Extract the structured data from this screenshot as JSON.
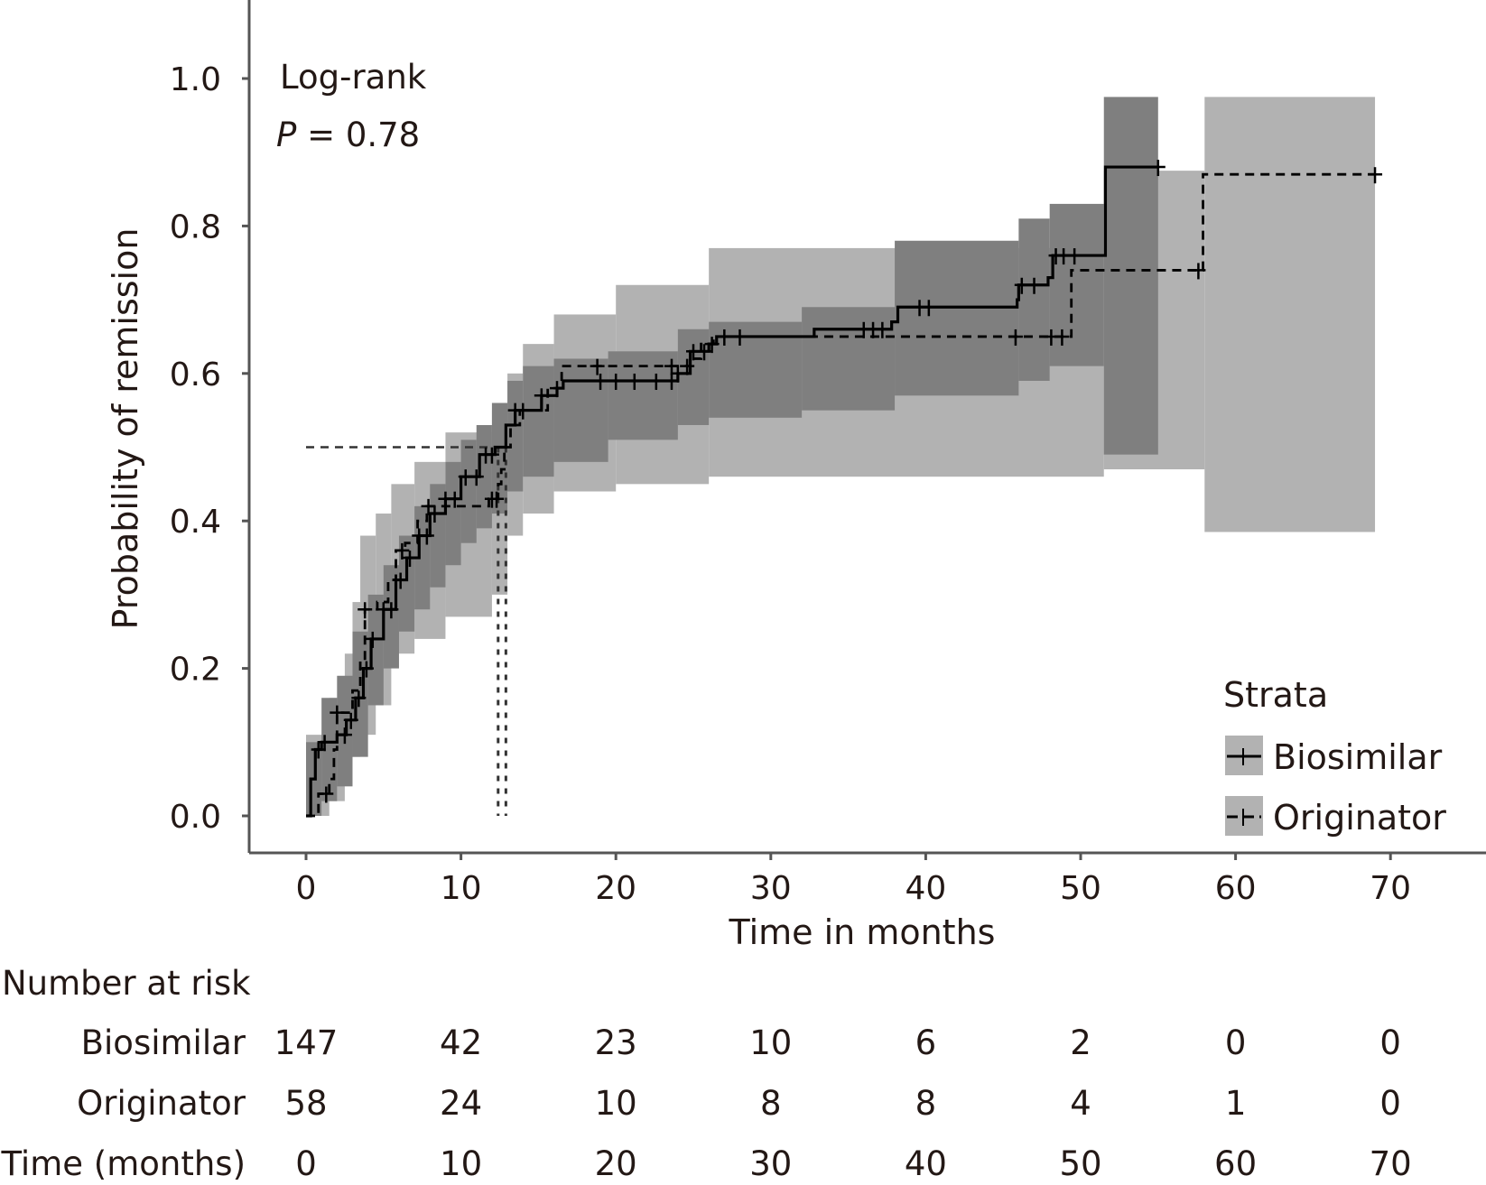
{
  "chart_data": {
    "type": "line",
    "subtype": "kaplan-meier-cumulative-incidence",
    "title": "",
    "xlabel": "Time in months",
    "ylabel": "Probability of remission",
    "xlim": [
      -3,
      72
    ],
    "ylim": [
      -0.045,
      1.03
    ],
    "x_ticks": [
      0,
      10,
      20,
      30,
      40,
      50,
      60,
      70
    ],
    "x_tick_labels": [
      "0",
      "10",
      "20",
      "30",
      "40",
      "50",
      "60",
      "70"
    ],
    "y_ticks": [
      0.0,
      0.2,
      0.4,
      0.6,
      0.8,
      1.0
    ],
    "y_tick_labels": [
      "0.0",
      "0.2",
      "0.4",
      "0.6",
      "0.8",
      "1.0"
    ],
    "grid": false,
    "annotation": {
      "line1": "Log-rank",
      "p_symbol": "P",
      "p_text": " = 0.78",
      "p_value": 0.78,
      "placement": "top-left"
    },
    "legend": {
      "title": "Strata",
      "placement": "bottom-right",
      "entries": [
        {
          "label": "Biosimilar",
          "linestyle": "solid"
        },
        {
          "label": "Originator",
          "linestyle": "dashed"
        }
      ]
    },
    "median_reference": {
      "y": 0.5,
      "x_biosimilar": 12.9,
      "x_originator": 12.4
    },
    "series": [
      {
        "name": "Biosimilar",
        "linestyle": "solid",
        "ci_fill": "#7f7f7f",
        "steps": [
          [
            0,
            0.0
          ],
          [
            0.3,
            0.05
          ],
          [
            0.6,
            0.09
          ],
          [
            1.0,
            0.1
          ],
          [
            2.0,
            0.11
          ],
          [
            2.6,
            0.13
          ],
          [
            3.2,
            0.16
          ],
          [
            3.7,
            0.2
          ],
          [
            4.2,
            0.24
          ],
          [
            5.0,
            0.28
          ],
          [
            5.8,
            0.32
          ],
          [
            6.5,
            0.35
          ],
          [
            7.3,
            0.38
          ],
          [
            8.0,
            0.41
          ],
          [
            9.0,
            0.43
          ],
          [
            10.0,
            0.46
          ],
          [
            11.2,
            0.49
          ],
          [
            12.2,
            0.5
          ],
          [
            12.9,
            0.53
          ],
          [
            13.5,
            0.55
          ],
          [
            15.2,
            0.57
          ],
          [
            16.2,
            0.58
          ],
          [
            16.6,
            0.59
          ],
          [
            24.0,
            0.6
          ],
          [
            24.8,
            0.63
          ],
          [
            26.0,
            0.64
          ],
          [
            26.5,
            0.65
          ],
          [
            32.8,
            0.66
          ],
          [
            37.8,
            0.67
          ],
          [
            38.2,
            0.69
          ],
          [
            45.9,
            0.7
          ],
          [
            46.0,
            0.72
          ],
          [
            47.9,
            0.73
          ],
          [
            48.2,
            0.76
          ],
          [
            51.6,
            0.77
          ],
          [
            51.6,
            0.88
          ],
          [
            55.0,
            0.88
          ]
        ],
        "censor_times": [
          0.8,
          1.2,
          2.5,
          2.9,
          3.4,
          3.9,
          4.3,
          5.0,
          5.5,
          6.1,
          6.7,
          7.3,
          7.8,
          8.3,
          9.0,
          9.6,
          10.3,
          11.0,
          11.6,
          12.0,
          13.5,
          14.0,
          15.2,
          16.2,
          19.0,
          20.0,
          21.2,
          22.6,
          23.6,
          24.0,
          25.0,
          25.7,
          27.0,
          28.0,
          36.0,
          36.6,
          37.2,
          39.6,
          40.2,
          46.2,
          47.0,
          48.4,
          48.9,
          49.6,
          55.0
        ]
      },
      {
        "name": "Originator",
        "linestyle": "dashed",
        "ci_fill": "#b2b2b2",
        "steps": [
          [
            0,
            0.0
          ],
          [
            0.8,
            0.03
          ],
          [
            1.5,
            0.05
          ],
          [
            1.8,
            0.09
          ],
          [
            2.0,
            0.14
          ],
          [
            3.0,
            0.17
          ],
          [
            3.5,
            0.21
          ],
          [
            3.8,
            0.28
          ],
          [
            4.6,
            0.29
          ],
          [
            5.3,
            0.32
          ],
          [
            5.8,
            0.36
          ],
          [
            6.4,
            0.37
          ],
          [
            7.2,
            0.4
          ],
          [
            7.8,
            0.42
          ],
          [
            11.8,
            0.43
          ],
          [
            12.4,
            0.45
          ],
          [
            12.6,
            0.47
          ],
          [
            12.8,
            0.5
          ],
          [
            13.2,
            0.53
          ],
          [
            13.8,
            0.55
          ],
          [
            15.6,
            0.58
          ],
          [
            16.5,
            0.61
          ],
          [
            24.8,
            0.62
          ],
          [
            25.5,
            0.64
          ],
          [
            26.3,
            0.65
          ],
          [
            49.4,
            0.65
          ],
          [
            49.4,
            0.74
          ],
          [
            57.9,
            0.74
          ],
          [
            57.9,
            0.87
          ],
          [
            69.0,
            0.87
          ]
        ],
        "censor_times": [
          1.3,
          2.0,
          3.8,
          6.2,
          7.9,
          12.0,
          12.3,
          18.8,
          23.6,
          24.6,
          26.2,
          45.8,
          48.1,
          48.8,
          57.6,
          69.0
        ]
      }
    ],
    "confidence_bands": [
      {
        "series": "Biosimilar",
        "segments": [
          [
            0.0,
            1.0,
            0.0,
            0.1
          ],
          [
            1.0,
            2.0,
            0.02,
            0.16
          ],
          [
            2.0,
            3.0,
            0.04,
            0.19
          ],
          [
            3.0,
            4.0,
            0.08,
            0.25
          ],
          [
            4.0,
            5.0,
            0.15,
            0.3
          ],
          [
            5.0,
            6.0,
            0.2,
            0.34
          ],
          [
            6.0,
            7.0,
            0.25,
            0.38
          ],
          [
            7.0,
            8.0,
            0.28,
            0.42
          ],
          [
            8.0,
            9.0,
            0.31,
            0.45
          ],
          [
            9.0,
            10.0,
            0.34,
            0.48
          ],
          [
            10.0,
            11.0,
            0.37,
            0.51
          ],
          [
            11.0,
            12.0,
            0.39,
            0.53
          ],
          [
            12.0,
            13.0,
            0.41,
            0.56
          ],
          [
            13.0,
            14.0,
            0.44,
            0.59
          ],
          [
            14.0,
            16.0,
            0.46,
            0.61
          ],
          [
            16.0,
            19.5,
            0.48,
            0.62
          ],
          [
            19.5,
            24.0,
            0.51,
            0.63
          ],
          [
            24.0,
            26.0,
            0.53,
            0.66
          ],
          [
            26.0,
            32.0,
            0.54,
            0.67
          ],
          [
            32.0,
            38.0,
            0.55,
            0.69
          ],
          [
            38.0,
            46.0,
            0.57,
            0.78
          ],
          [
            46.0,
            48.0,
            0.59,
            0.81
          ],
          [
            48.0,
            51.5,
            0.61,
            0.83
          ],
          [
            51.5,
            55.0,
            0.49,
            0.975
          ]
        ]
      },
      {
        "series": "Originator",
        "segments": [
          [
            0.0,
            1.5,
            0.0,
            0.11
          ],
          [
            1.5,
            2.5,
            0.02,
            0.16
          ],
          [
            2.5,
            3.0,
            0.05,
            0.22
          ],
          [
            3.0,
            3.5,
            0.08,
            0.29
          ],
          [
            3.5,
            4.5,
            0.11,
            0.38
          ],
          [
            4.5,
            5.5,
            0.15,
            0.41
          ],
          [
            5.5,
            7.0,
            0.22,
            0.45
          ],
          [
            7.0,
            9.0,
            0.24,
            0.48
          ],
          [
            9.0,
            12.0,
            0.27,
            0.52
          ],
          [
            12.0,
            13.0,
            0.3,
            0.55
          ],
          [
            13.0,
            14.0,
            0.38,
            0.6
          ],
          [
            14.0,
            16.0,
            0.41,
            0.64
          ],
          [
            16.0,
            20.0,
            0.44,
            0.68
          ],
          [
            20.0,
            26.0,
            0.45,
            0.72
          ],
          [
            26.0,
            51.5,
            0.46,
            0.77
          ],
          [
            51.5,
            58.0,
            0.47,
            0.875
          ],
          [
            58.0,
            69.0,
            0.385,
            0.975
          ]
        ]
      }
    ],
    "risk_table": {
      "title": "Number at risk",
      "time_label": "Time (months)",
      "times": [
        0,
        10,
        20,
        30,
        40,
        50,
        60,
        70
      ],
      "rows": [
        {
          "label": "Biosimilar",
          "values": [
            147,
            42,
            23,
            10,
            6,
            2,
            0,
            0
          ]
        },
        {
          "label": "Originator",
          "values": [
            58,
            24,
            10,
            8,
            8,
            4,
            1,
            0
          ]
        }
      ]
    }
  },
  "colors": {
    "ci_dark": "#7f7f7f",
    "ci_light": "#b2b2b2",
    "line": "#000000",
    "text": "#231815",
    "axis": "#555555"
  }
}
